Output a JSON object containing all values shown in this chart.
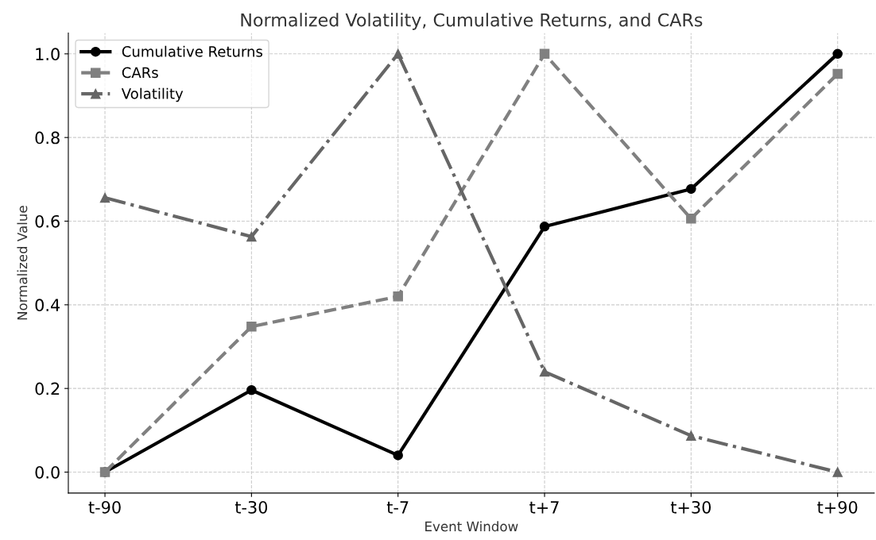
{
  "chart_data": {
    "type": "line",
    "title": "Normalized Volatility, Cumulative Returns, and CARs",
    "xlabel": "Event Window",
    "ylabel": "Normalized Value",
    "categories": [
      "t-90",
      "t-30",
      "t-7",
      "t+7",
      "t+30",
      "t+90"
    ],
    "series": [
      {
        "name": "Cumulative Returns",
        "color": "#000000",
        "marker": "circle",
        "line_style": "solid",
        "values": [
          0.0,
          0.196,
          0.04,
          0.587,
          0.677,
          1.0
        ]
      },
      {
        "name": "CARs",
        "color": "#808080",
        "marker": "square",
        "line_style": "dashed",
        "values": [
          0.0,
          0.348,
          0.42,
          1.0,
          0.606,
          0.952
        ]
      },
      {
        "name": "Volatility",
        "color": "#666666",
        "marker": "triangle",
        "line_style": "dashdot",
        "values": [
          0.656,
          0.563,
          1.0,
          0.24,
          0.087,
          0.0
        ]
      }
    ],
    "ylim": [
      -0.05,
      1.05
    ],
    "yticks": [
      {
        "value": 0,
        "label": "0.0"
      },
      {
        "value": 0.2,
        "label": "0.2"
      },
      {
        "value": 0.4,
        "label": "0.4"
      },
      {
        "value": 0.6,
        "label": "0.6"
      },
      {
        "value": 0.8,
        "label": "0.8"
      },
      {
        "value": 1.0,
        "label": "1.0"
      }
    ],
    "grid": true,
    "legend": "top left"
  }
}
